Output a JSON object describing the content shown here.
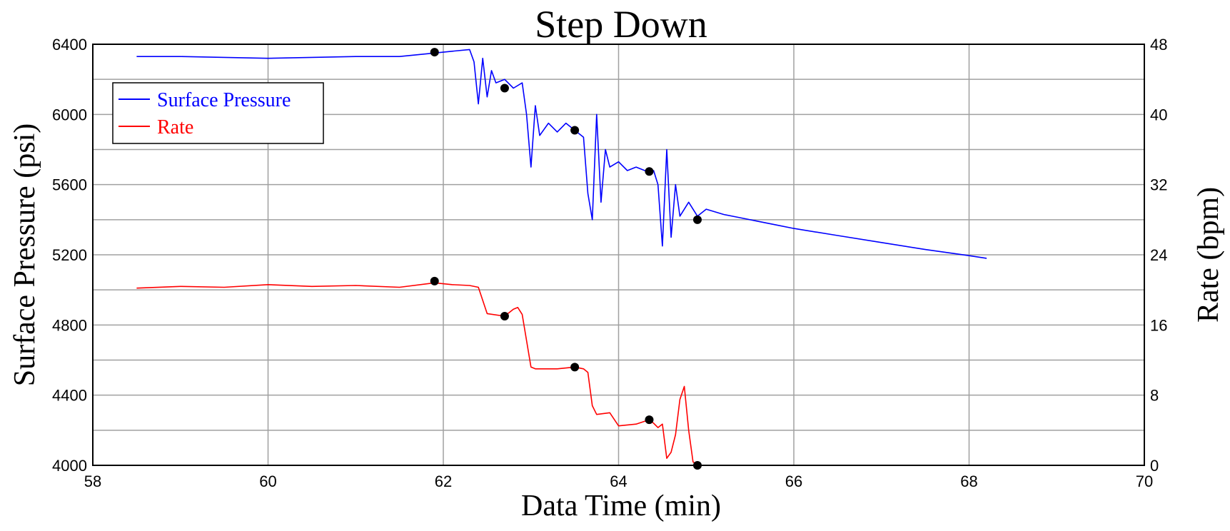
{
  "chart_data": {
    "type": "line",
    "title": "Step Down",
    "xlabel": "Data Time (min)",
    "ylabel": "Surface Pressure (psi)",
    "y2label": "Rate (bpm)",
    "xlim": [
      58,
      70
    ],
    "ylim": [
      4000,
      6400
    ],
    "y2lim": [
      0,
      48
    ],
    "x_ticks": [
      58,
      60,
      62,
      64,
      66,
      68,
      70
    ],
    "x_tick_labels": [
      "58",
      "60",
      "62",
      "64",
      "66",
      "68",
      "70"
    ],
    "y_ticks": [
      4000,
      4400,
      4800,
      5200,
      5600,
      6000,
      6400
    ],
    "y_tick_labels": [
      "4000",
      "4400",
      "4800",
      "5200",
      "5600",
      "6000",
      "6400"
    ],
    "y2_ticks": [
      0,
      8,
      16,
      24,
      32,
      40,
      48
    ],
    "y2_tick_labels": [
      "0",
      "8",
      "16",
      "24",
      "32",
      "40",
      "48"
    ],
    "grid": true,
    "legend_position": "top-left",
    "series": [
      {
        "name": "Surface Pressure",
        "axis": "left",
        "color": "#0000ff",
        "x": [
          58.5,
          59.0,
          59.5,
          60.0,
          60.5,
          61.0,
          61.5,
          61.9,
          62.1,
          62.3,
          62.35,
          62.4,
          62.45,
          62.5,
          62.55,
          62.6,
          62.7,
          62.8,
          62.9,
          62.95,
          63.0,
          63.05,
          63.1,
          63.2,
          63.3,
          63.4,
          63.5,
          63.6,
          63.65,
          63.7,
          63.75,
          63.8,
          63.85,
          63.9,
          64.0,
          64.1,
          64.2,
          64.3,
          64.4,
          64.45,
          64.5,
          64.55,
          64.6,
          64.65,
          64.7,
          64.8,
          64.9,
          65.0,
          65.2,
          65.4,
          65.6,
          65.8,
          66.0,
          66.5,
          67.0,
          67.5,
          68.0,
          68.2
        ],
        "values": [
          6330,
          6330,
          6325,
          6320,
          6325,
          6330,
          6330,
          6350,
          6360,
          6370,
          6300,
          6060,
          6320,
          6100,
          6250,
          6180,
          6200,
          6150,
          6180,
          6000,
          5700,
          6050,
          5880,
          5950,
          5900,
          5950,
          5910,
          5870,
          5550,
          5400,
          6000,
          5500,
          5800,
          5700,
          5730,
          5680,
          5700,
          5680,
          5680,
          5600,
          5250,
          5800,
          5300,
          5600,
          5420,
          5500,
          5420,
          5460,
          5430,
          5410,
          5390,
          5370,
          5350,
          5310,
          5270,
          5230,
          5195,
          5180
        ]
      },
      {
        "name": "Rate",
        "axis": "right",
        "color": "#ff0000",
        "x": [
          58.5,
          59.0,
          59.5,
          60.0,
          60.5,
          61.0,
          61.5,
          61.9,
          62.1,
          62.3,
          62.4,
          62.5,
          62.7,
          62.8,
          62.85,
          62.9,
          63.0,
          63.05,
          63.3,
          63.5,
          63.6,
          63.65,
          63.7,
          63.75,
          63.9,
          64.0,
          64.2,
          64.35,
          64.4,
          64.45,
          64.5,
          64.55,
          64.6,
          64.65,
          64.7,
          64.75,
          64.8,
          64.85,
          64.9
        ],
        "values": [
          20.2,
          20.4,
          20.3,
          20.6,
          20.4,
          20.5,
          20.3,
          20.8,
          20.6,
          20.5,
          20.3,
          17.3,
          17.0,
          17.8,
          18.0,
          17.2,
          11.2,
          11.0,
          11.0,
          11.2,
          11.0,
          10.6,
          6.8,
          5.8,
          6.0,
          4.5,
          4.7,
          5.2,
          4.8,
          4.3,
          4.7,
          0.8,
          1.5,
          3.5,
          7.5,
          9.0,
          4.0,
          0.4,
          0.0
        ]
      }
    ],
    "markers": {
      "color": "#000000",
      "pressure_points": [
        [
          61.9,
          6355
        ],
        [
          62.7,
          6150
        ],
        [
          63.5,
          5910
        ],
        [
          64.35,
          5675
        ],
        [
          64.9,
          5400
        ]
      ],
      "rate_points": [
        [
          61.9,
          21.0
        ],
        [
          62.7,
          17.0
        ],
        [
          63.5,
          11.2
        ],
        [
          64.35,
          5.2
        ],
        [
          64.9,
          0.0
        ]
      ]
    }
  }
}
